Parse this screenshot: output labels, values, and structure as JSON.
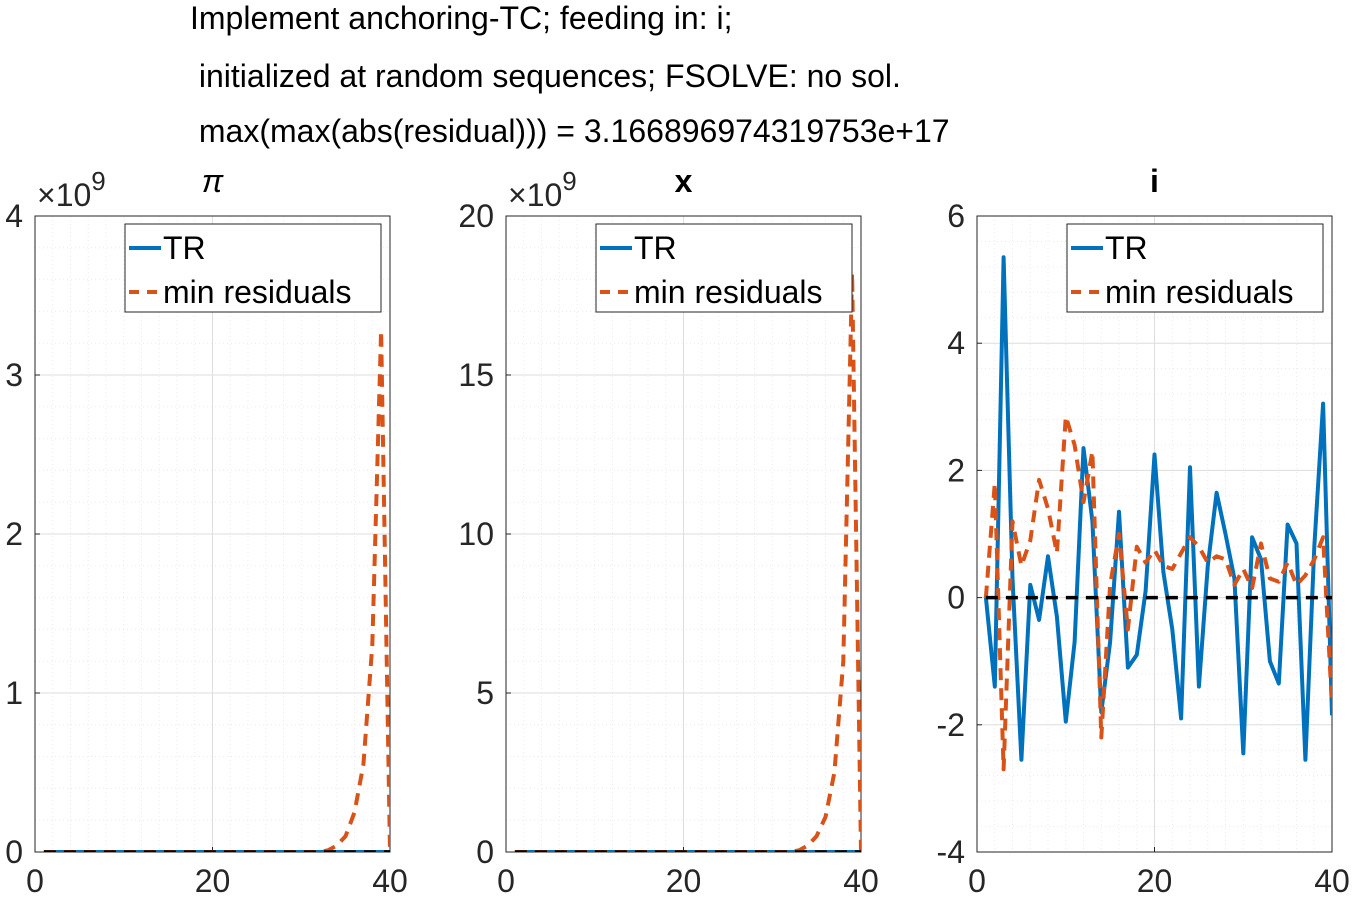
{
  "figure_title_lines": [
    "Implement anchoring-TC; feeding in: i;",
    " initialized at random sequences; FSOLVE: no sol.",
    " max(max(abs(residual))) = 3.166896974319753e+17"
  ],
  "colors": {
    "tr": "#0072BD",
    "min_residuals": "#D95319",
    "zero_line": "#000000",
    "grid": "#dedede",
    "axes": "#262626"
  },
  "chart_data": [
    {
      "type": "line",
      "title": "π",
      "title_style": "italic",
      "exponent_label": "×10^9",
      "xlim": [
        0,
        40
      ],
      "ylim": [
        0,
        4
      ],
      "x_ticks": [
        "0",
        "20",
        "40"
      ],
      "y_ticks": [
        "0",
        "1",
        "2",
        "3",
        "4"
      ],
      "grid": "major+minor",
      "legend": {
        "position": "top-right",
        "entries": [
          "TR",
          "min residuals"
        ]
      },
      "zero_line": true,
      "x": [
        1,
        2,
        3,
        4,
        5,
        6,
        7,
        8,
        9,
        10,
        11,
        12,
        13,
        14,
        15,
        16,
        17,
        18,
        19,
        20,
        21,
        22,
        23,
        24,
        25,
        26,
        27,
        28,
        29,
        30,
        31,
        32,
        33,
        34,
        35,
        36,
        37,
        38,
        39,
        40
      ],
      "series": [
        {
          "name": "TR",
          "style": "solid",
          "values": [
            0,
            0,
            0,
            0,
            0,
            0,
            0,
            0,
            0,
            0,
            0,
            0,
            0,
            0,
            0,
            0,
            0,
            0,
            0,
            0,
            0,
            0,
            0,
            0,
            0,
            0,
            0,
            0,
            0,
            0,
            0,
            0,
            0,
            0,
            0,
            0,
            0,
            0,
            0,
            0
          ]
        },
        {
          "name": "min residuals",
          "style": "dashed",
          "values": [
            0,
            0,
            0,
            0,
            0,
            0,
            0,
            0,
            0,
            0,
            0,
            0,
            0,
            0,
            0,
            0,
            0,
            0,
            0,
            0,
            0,
            0,
            0,
            0,
            0,
            0,
            0,
            0,
            0,
            0,
            0,
            0,
            0.01,
            0.04,
            0.1,
            0.25,
            0.55,
            1.3,
            3.28,
            0
          ]
        }
      ]
    },
    {
      "type": "line",
      "title": "x",
      "title_style": "bold",
      "exponent_label": "×10^9",
      "xlim": [
        0,
        40
      ],
      "ylim": [
        0,
        20
      ],
      "x_ticks": [
        "0",
        "20",
        "40"
      ],
      "y_ticks": [
        "0",
        "5",
        "10",
        "15",
        "20"
      ],
      "grid": "major+minor",
      "legend": {
        "position": "top-right",
        "entries": [
          "TR",
          "min residuals"
        ]
      },
      "zero_line": true,
      "x": [
        1,
        2,
        3,
        4,
        5,
        6,
        7,
        8,
        9,
        10,
        11,
        12,
        13,
        14,
        15,
        16,
        17,
        18,
        19,
        20,
        21,
        22,
        23,
        24,
        25,
        26,
        27,
        28,
        29,
        30,
        31,
        32,
        33,
        34,
        35,
        36,
        37,
        38,
        39,
        40
      ],
      "series": [
        {
          "name": "TR",
          "style": "solid",
          "values": [
            0,
            0,
            0,
            0,
            0,
            0,
            0,
            0,
            0,
            0,
            0,
            0,
            0,
            0,
            0,
            0,
            0,
            0,
            0,
            0,
            0,
            0,
            0,
            0,
            0,
            0,
            0,
            0,
            0,
            0,
            0,
            0,
            0,
            0,
            0,
            0,
            0,
            0,
            0,
            0
          ]
        },
        {
          "name": "min residuals",
          "style": "dashed",
          "values": [
            0,
            0,
            0,
            0,
            0,
            0,
            0,
            0,
            0,
            0,
            0,
            0,
            0,
            0,
            0,
            0,
            0,
            0,
            0,
            0,
            0,
            0,
            0,
            0,
            0,
            0,
            0,
            0,
            0,
            0,
            0,
            0,
            0.05,
            0.2,
            0.5,
            1.1,
            2.5,
            6.0,
            18.2,
            0
          ]
        }
      ]
    },
    {
      "type": "line",
      "title": "i",
      "title_style": "bold",
      "exponent_label": "",
      "xlim": [
        0,
        40
      ],
      "ylim": [
        -4,
        6
      ],
      "x_ticks": [
        "0",
        "20",
        "40"
      ],
      "y_ticks": [
        "-4",
        "-2",
        "0",
        "2",
        "4",
        "6"
      ],
      "grid": "major+minor",
      "legend": {
        "position": "top-right",
        "entries": [
          "TR",
          "min residuals"
        ]
      },
      "zero_line": true,
      "x": [
        1,
        2,
        3,
        4,
        5,
        6,
        7,
        8,
        9,
        10,
        11,
        12,
        13,
        14,
        15,
        16,
        17,
        18,
        19,
        20,
        21,
        22,
        23,
        24,
        25,
        26,
        27,
        28,
        29,
        30,
        31,
        32,
        33,
        34,
        35,
        36,
        37,
        38,
        39,
        40
      ],
      "series": [
        {
          "name": "TR",
          "style": "solid",
          "values": [
            0,
            -1.4,
            5.35,
            0.3,
            -2.55,
            0.2,
            -0.35,
            0.65,
            -0.3,
            -1.95,
            -0.7,
            2.35,
            1.2,
            -1.8,
            -0.7,
            1.35,
            -1.1,
            -0.9,
            0.1,
            2.25,
            0.4,
            -0.5,
            -1.9,
            2.05,
            -1.4,
            0.5,
            1.65,
            1.0,
            0.3,
            -2.45,
            0.95,
            0.6,
            -1.0,
            -1.35,
            1.15,
            0.85,
            -2.55,
            0.8,
            3.05,
            -1.85
          ]
        },
        {
          "name": "min residuals",
          "style": "dashed",
          "values": [
            0,
            1.8,
            -2.7,
            1.2,
            0.5,
            0.9,
            1.85,
            1.4,
            0.7,
            2.85,
            2.4,
            1.5,
            2.3,
            -2.2,
            0.2,
            1.0,
            -0.5,
            0.8,
            0.55,
            0.75,
            0.5,
            0.45,
            0.7,
            0.95,
            0.8,
            0.55,
            0.65,
            0.6,
            0.2,
            0.45,
            0.15,
            0.85,
            0.3,
            0.25,
            0.55,
            0.2,
            0.35,
            0.6,
            0.95,
            -1.7
          ]
        }
      ]
    }
  ]
}
